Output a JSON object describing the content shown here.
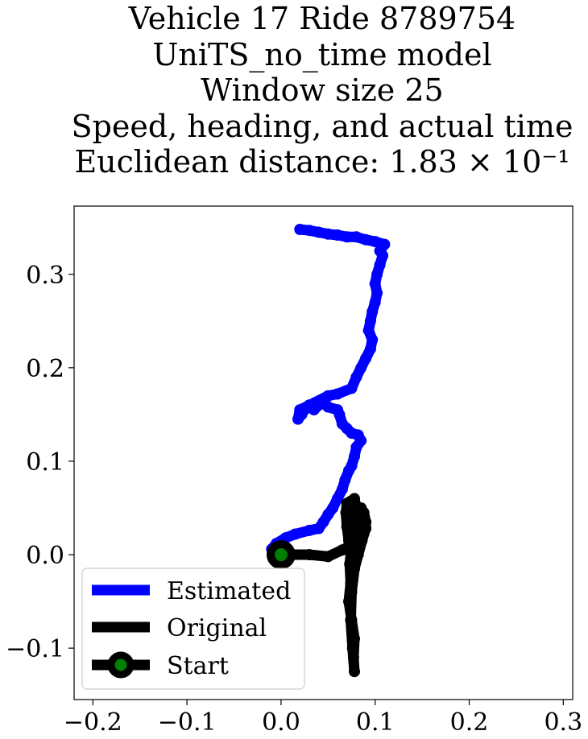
{
  "chart_data": {
    "type": "line",
    "title_lines": [
      "Vehicle 17 Ride 8789754",
      "UniTS_no_time model",
      "Window size 25",
      "Speed, heading, and actual time",
      "Euclidean distance: 1.83 × 10⁻¹"
    ],
    "xlabel": "",
    "ylabel": "",
    "xlim": [
      -0.22,
      0.31
    ],
    "ylim": [
      -0.155,
      0.373
    ],
    "xticks": [
      -0.2,
      -0.1,
      0.0,
      0.1,
      0.2,
      0.3
    ],
    "xtick_labels": [
      "−0.2",
      "−0.1",
      "0.0",
      "0.1",
      "0.2",
      "0.3"
    ],
    "yticks": [
      -0.1,
      0.0,
      0.1,
      0.2,
      0.3
    ],
    "ytick_labels": [
      "−0.1",
      "0.0",
      "0.1",
      "0.2",
      "0.3"
    ],
    "grid": false,
    "legend_position": "lower-left",
    "series": [
      {
        "name": "Estimated",
        "color": "#0000ff",
        "points": [
          [
            0.0,
            0.0
          ],
          [
            -0.01,
            0.006
          ],
          [
            -0.005,
            0.012
          ],
          [
            0.005,
            0.018
          ],
          [
            0.015,
            0.022
          ],
          [
            0.03,
            0.026
          ],
          [
            0.04,
            0.028
          ],
          [
            0.045,
            0.035
          ],
          [
            0.05,
            0.043
          ],
          [
            0.055,
            0.05
          ],
          [
            0.06,
            0.06
          ],
          [
            0.065,
            0.07
          ],
          [
            0.068,
            0.08
          ],
          [
            0.072,
            0.09
          ],
          [
            0.075,
            0.095
          ],
          [
            0.078,
            0.105
          ],
          [
            0.08,
            0.115
          ],
          [
            0.085,
            0.122
          ],
          [
            0.082,
            0.128
          ],
          [
            0.075,
            0.13
          ],
          [
            0.07,
            0.135
          ],
          [
            0.065,
            0.14
          ],
          [
            0.062,
            0.15
          ],
          [
            0.06,
            0.155
          ],
          [
            0.05,
            0.158
          ],
          [
            0.045,
            0.163
          ],
          [
            0.05,
            0.17
          ],
          [
            0.04,
            0.16
          ],
          [
            0.035,
            0.155
          ],
          [
            0.03,
            0.16
          ],
          [
            0.025,
            0.155
          ],
          [
            0.022,
            0.15
          ],
          [
            0.018,
            0.145
          ],
          [
            0.02,
            0.155
          ],
          [
            0.03,
            0.16
          ],
          [
            0.05,
            0.17
          ],
          [
            0.06,
            0.172
          ],
          [
            0.075,
            0.178
          ],
          [
            0.08,
            0.19
          ],
          [
            0.085,
            0.2
          ],
          [
            0.09,
            0.21
          ],
          [
            0.095,
            0.22
          ],
          [
            0.097,
            0.23
          ],
          [
            0.093,
            0.24
          ],
          [
            0.095,
            0.25
          ],
          [
            0.097,
            0.26
          ],
          [
            0.1,
            0.27
          ],
          [
            0.102,
            0.28
          ],
          [
            0.1,
            0.29
          ],
          [
            0.102,
            0.3
          ],
          [
            0.105,
            0.31
          ],
          [
            0.108,
            0.32
          ],
          [
            0.105,
            0.325
          ],
          [
            0.11,
            0.332
          ],
          [
            0.1,
            0.335
          ],
          [
            0.09,
            0.337
          ],
          [
            0.08,
            0.34
          ],
          [
            0.07,
            0.34
          ],
          [
            0.06,
            0.342
          ],
          [
            0.05,
            0.343
          ],
          [
            0.04,
            0.345
          ],
          [
            0.03,
            0.347
          ],
          [
            0.02,
            0.348
          ]
        ]
      },
      {
        "name": "Original",
        "color": "#000000",
        "points": [
          [
            0.0,
            0.0
          ],
          [
            0.03,
            0.0
          ],
          [
            0.05,
            -0.002
          ],
          [
            0.065,
            0.005
          ],
          [
            0.075,
            0.01
          ],
          [
            0.085,
            0.025
          ],
          [
            0.09,
            0.035
          ],
          [
            0.088,
            0.045
          ],
          [
            0.085,
            0.05
          ],
          [
            0.082,
            0.045
          ],
          [
            0.08,
            0.03
          ],
          [
            0.078,
            0.02
          ],
          [
            0.076,
            0.005
          ],
          [
            0.072,
            0.015
          ],
          [
            0.07,
            0.03
          ],
          [
            0.069,
            0.045
          ],
          [
            0.07,
            0.055
          ],
          [
            0.078,
            0.06
          ],
          [
            0.08,
            0.05
          ],
          [
            0.078,
            0.03
          ],
          [
            0.075,
            0.01
          ],
          [
            0.073,
            -0.01
          ],
          [
            0.074,
            -0.03
          ],
          [
            0.072,
            -0.05
          ],
          [
            0.075,
            -0.07
          ],
          [
            0.078,
            -0.09
          ],
          [
            0.077,
            -0.11
          ],
          [
            0.078,
            -0.125
          ],
          [
            0.076,
            -0.1
          ],
          [
            0.074,
            -0.07
          ],
          [
            0.075,
            -0.04
          ],
          [
            0.078,
            -0.015
          ],
          [
            0.082,
            0.0
          ],
          [
            0.086,
            0.015
          ],
          [
            0.09,
            0.028
          ],
          [
            0.09,
            0.035
          ]
        ]
      },
      {
        "name": "Start",
        "marker_face": "#008000",
        "marker_edge": "#000000",
        "points": [
          [
            0.0,
            0.0
          ]
        ]
      }
    ]
  }
}
